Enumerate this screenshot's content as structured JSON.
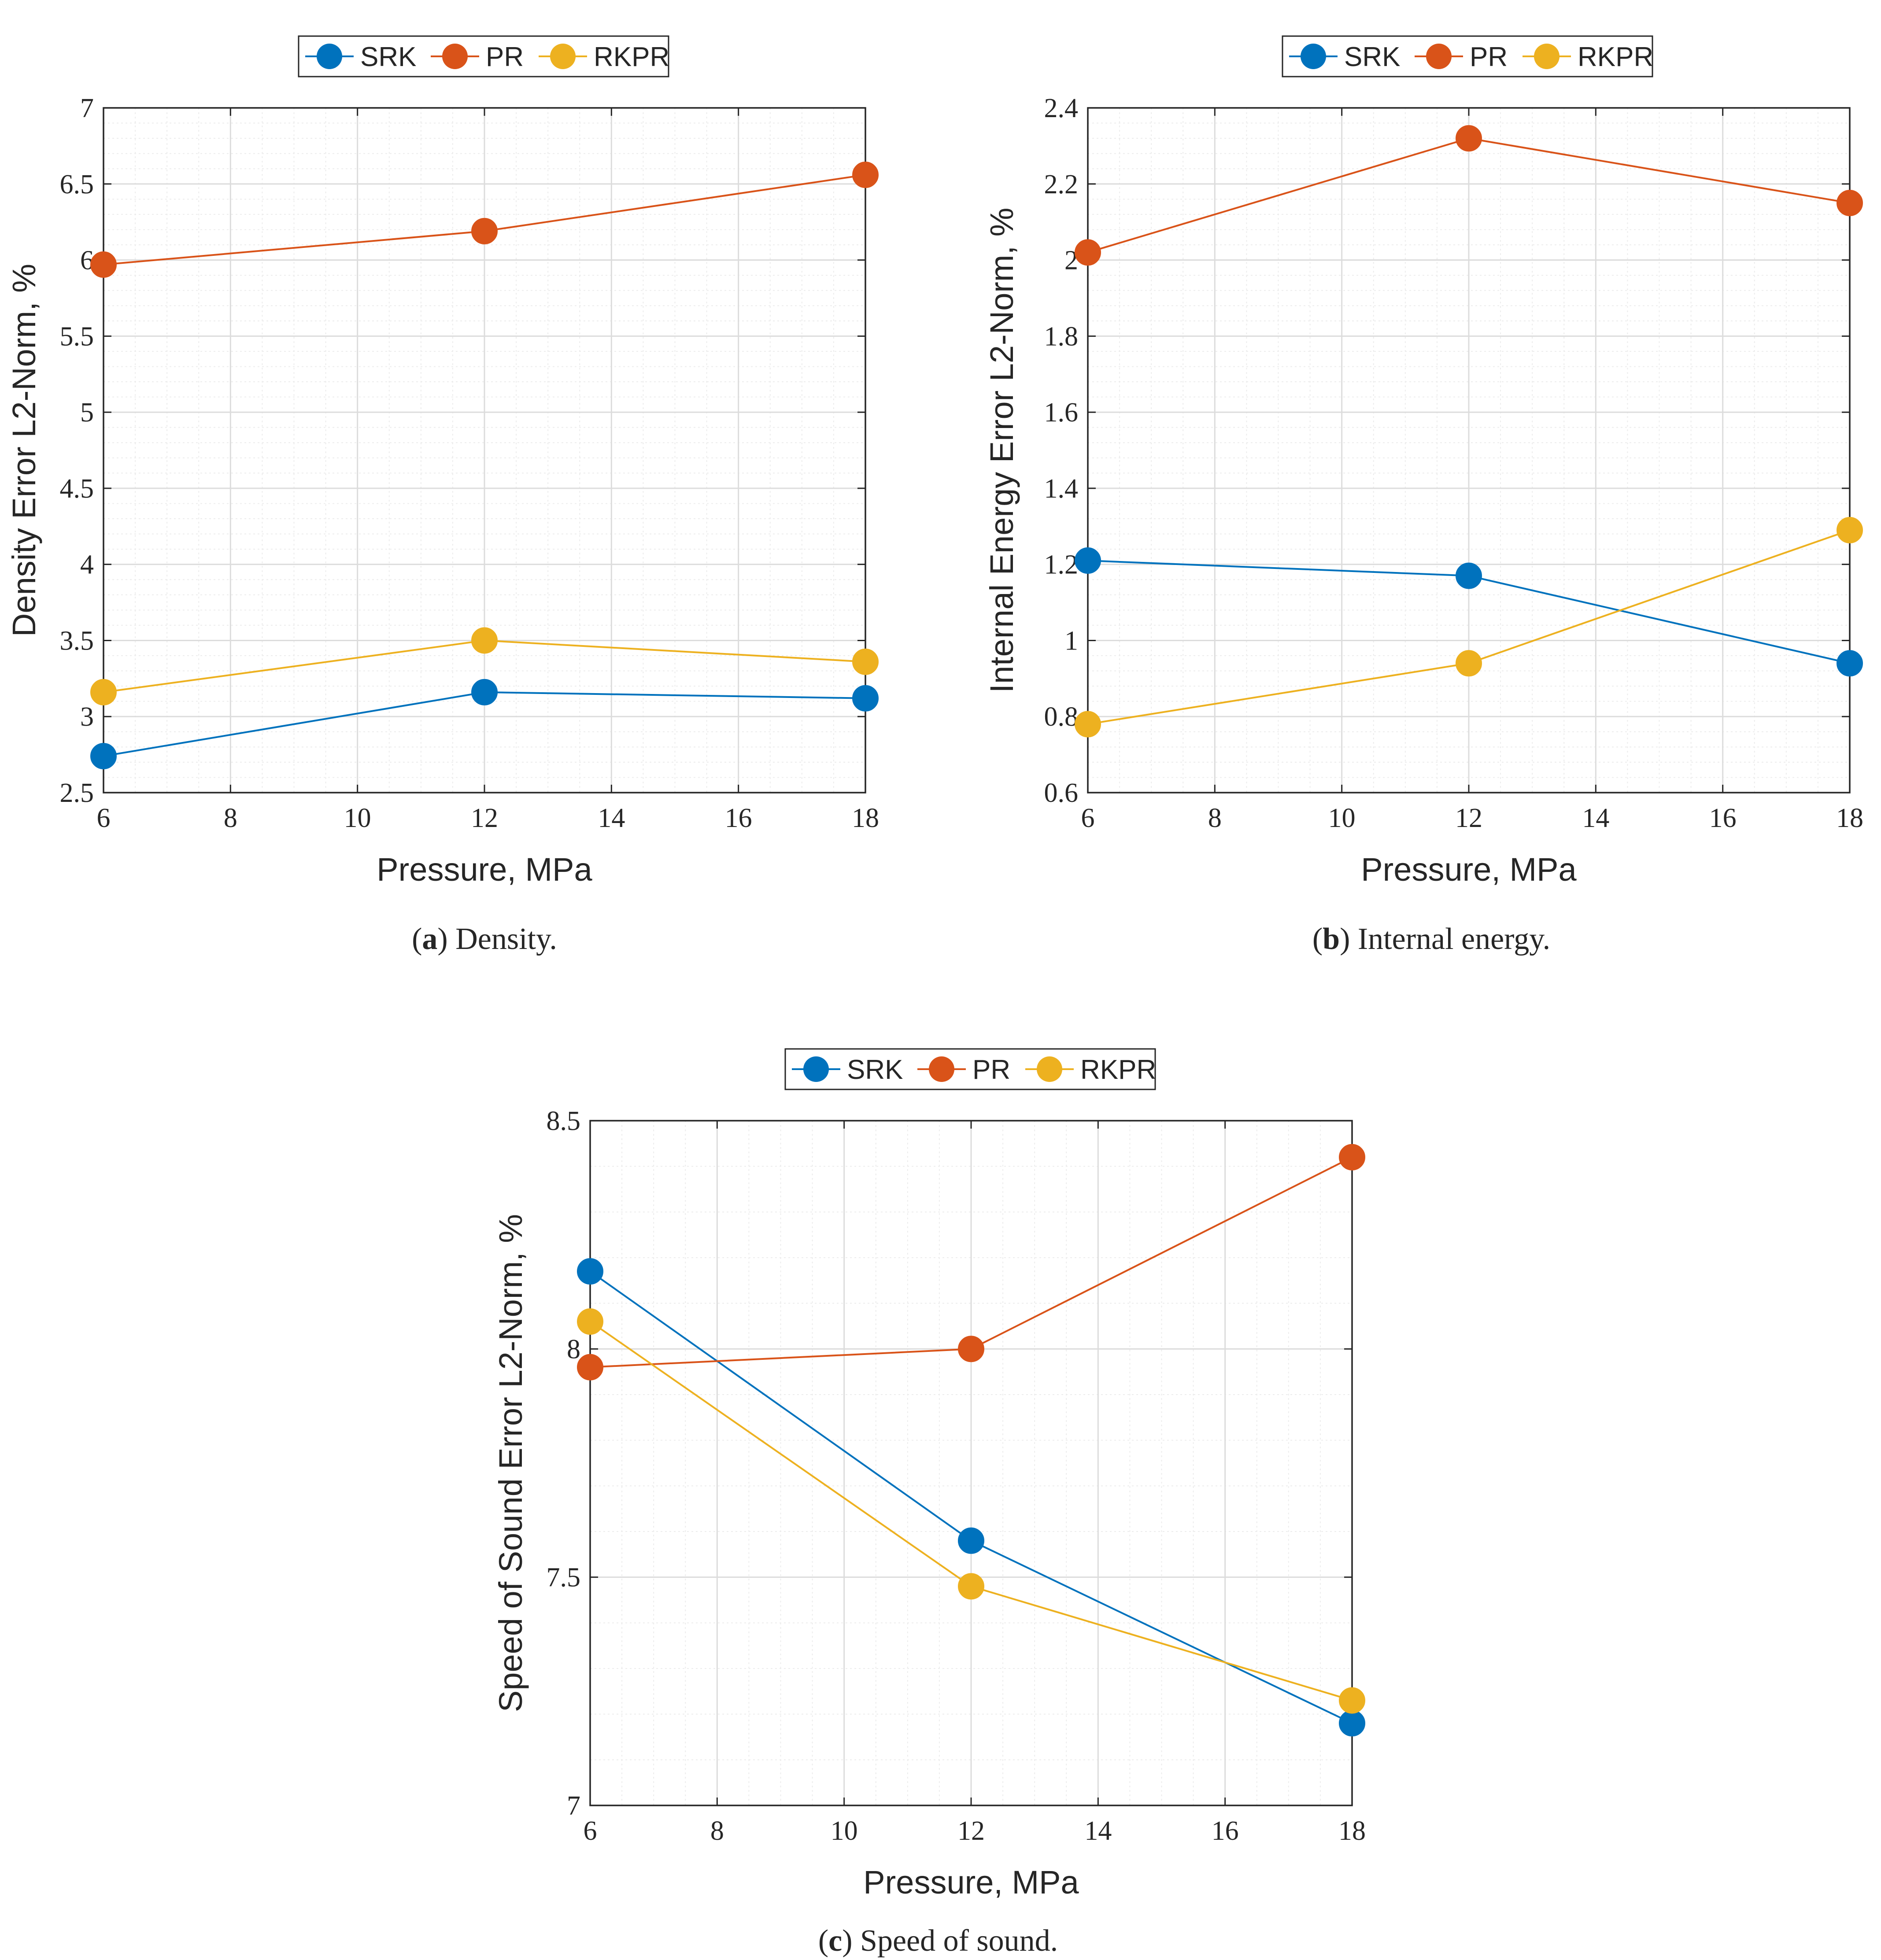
{
  "colors": {
    "SRK": "#0072BD",
    "PR": "#D95319",
    "RKPR": "#EDB120",
    "axis": "#262626",
    "grid_major": "#dcdcdc",
    "grid_minor": "#ececec"
  },
  "chart_data": [
    {
      "id": "a",
      "type": "line",
      "xlabel": "Pressure, MPa",
      "ylabel": "Density Error L2-Norm, %",
      "caption": {
        "letter": "a",
        "open": "(",
        "close": ")",
        "text": " Density."
      },
      "x": [
        6,
        12,
        18
      ],
      "xlim": [
        6,
        18
      ],
      "xticks": [
        6,
        8,
        10,
        12,
        14,
        16,
        18
      ],
      "xtick_labels": [
        "6",
        "8",
        "10",
        "12",
        "14",
        "16",
        "18"
      ],
      "ylim": [
        2.5,
        7
      ],
      "yticks": [
        2.5,
        3,
        3.5,
        4,
        4.5,
        5,
        5.5,
        6,
        6.5,
        7
      ],
      "ytick_labels": [
        "2.5",
        "3",
        "3.5",
        "4",
        "4.5",
        "5",
        "5.5",
        "6",
        "6.5",
        "7"
      ],
      "grid": true,
      "legend": "top-center",
      "series": [
        {
          "name": "SRK",
          "values": [
            2.74,
            3.16,
            3.12
          ]
        },
        {
          "name": "PR",
          "values": [
            5.97,
            6.19,
            6.56
          ]
        },
        {
          "name": "RKPR",
          "values": [
            3.16,
            3.5,
            3.36
          ]
        }
      ]
    },
    {
      "id": "b",
      "type": "line",
      "xlabel": "Pressure, MPa",
      "ylabel": "Internal Energy Error L2-Norm, %",
      "caption": {
        "letter": "b",
        "open": "(",
        "close": ")",
        "text": " Internal energy."
      },
      "x": [
        6,
        12,
        18
      ],
      "xlim": [
        6,
        18
      ],
      "xticks": [
        6,
        8,
        10,
        12,
        14,
        16,
        18
      ],
      "xtick_labels": [
        "6",
        "8",
        "10",
        "12",
        "14",
        "16",
        "18"
      ],
      "ylim": [
        0.6,
        2.4
      ],
      "yticks": [
        0.6,
        0.8,
        1,
        1.2,
        1.4,
        1.6,
        1.8,
        2,
        2.2,
        2.4
      ],
      "ytick_labels": [
        "0.6",
        "0.8",
        "1",
        "1.2",
        "1.4",
        "1.6",
        "1.8",
        "2",
        "2.2",
        "2.4"
      ],
      "grid": true,
      "legend": "top-center",
      "series": [
        {
          "name": "SRK",
          "values": [
            1.21,
            1.17,
            0.94
          ]
        },
        {
          "name": "PR",
          "values": [
            2.02,
            2.32,
            2.15
          ]
        },
        {
          "name": "RKPR",
          "values": [
            0.78,
            0.94,
            1.29
          ]
        }
      ]
    },
    {
      "id": "c",
      "type": "line",
      "xlabel": "Pressure, MPa",
      "ylabel": "Speed of Sound Error L2-Norm, %",
      "caption": {
        "letter": "c",
        "open": "(",
        "close": ")",
        "text": " Speed of sound."
      },
      "x": [
        6,
        12,
        18
      ],
      "xlim": [
        6,
        18
      ],
      "xticks": [
        6,
        8,
        10,
        12,
        14,
        16,
        18
      ],
      "xtick_labels": [
        "6",
        "8",
        "10",
        "12",
        "14",
        "16",
        "18"
      ],
      "ylim": [
        7,
        8.5
      ],
      "yticks": [
        7,
        7.5,
        8,
        8.5
      ],
      "ytick_labels": [
        "7",
        "7.5",
        "8",
        "8.5"
      ],
      "grid": true,
      "legend": "top-center",
      "series": [
        {
          "name": "SRK",
          "values": [
            8.17,
            7.58,
            7.18
          ]
        },
        {
          "name": "PR",
          "values": [
            7.96,
            8.0,
            8.42
          ]
        },
        {
          "name": "RKPR",
          "values": [
            8.06,
            7.48,
            7.23
          ]
        }
      ]
    }
  ]
}
